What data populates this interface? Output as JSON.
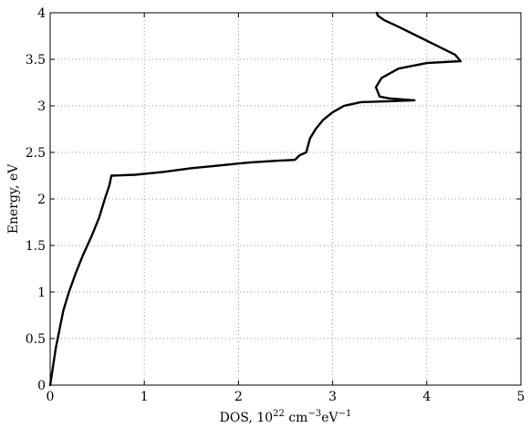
{
  "chart_data": {
    "type": "line",
    "title": "",
    "xlabel": {
      "prefix": "DOS, 10",
      "exp1": "22",
      "mid": " cm",
      "exp2": "−3",
      "suffix": "eV",
      "exp3": "−1"
    },
    "ylabel": "Energy, eV",
    "xlim": [
      0,
      5
    ],
    "ylim": [
      0,
      4
    ],
    "xticks": [
      0,
      1,
      2,
      3,
      4,
      5
    ],
    "xtick_labels": [
      "0",
      "1",
      "2",
      "3",
      "4",
      "5"
    ],
    "yticks": [
      0,
      0.5,
      1,
      1.5,
      2,
      2.5,
      3,
      3.5,
      4
    ],
    "ytick_labels": [
      "0",
      "0.5",
      "1",
      "1.5",
      "2",
      "2.5",
      "3",
      "3.5",
      "4"
    ],
    "grid": true,
    "grid_style": "dotted",
    "series_color": "#000000",
    "series": [
      {
        "x": [
          0.0,
          0.03,
          0.06,
          0.1,
          0.14,
          0.2,
          0.27,
          0.35,
          0.44,
          0.52,
          0.58,
          0.63,
          0.65,
          0.9,
          1.2,
          1.5,
          1.8,
          2.1,
          2.4,
          2.6,
          2.62,
          2.65,
          2.72,
          2.76,
          2.82,
          2.9,
          3.0,
          3.12,
          3.3,
          3.6,
          3.87,
          3.6,
          3.5,
          3.46,
          3.52,
          3.7,
          4.0,
          4.36,
          4.3,
          4.1,
          3.9,
          3.7,
          3.55,
          3.48,
          3.47
        ],
        "y": [
          0.0,
          0.2,
          0.4,
          0.6,
          0.8,
          1.0,
          1.2,
          1.4,
          1.6,
          1.8,
          2.0,
          2.15,
          2.25,
          2.26,
          2.29,
          2.33,
          2.36,
          2.39,
          2.41,
          2.42,
          2.44,
          2.47,
          2.5,
          2.65,
          2.75,
          2.85,
          2.93,
          3.0,
          3.04,
          3.05,
          3.06,
          3.08,
          3.1,
          3.2,
          3.3,
          3.4,
          3.46,
          3.48,
          3.55,
          3.65,
          3.75,
          3.85,
          3.92,
          3.97,
          4.0
        ]
      }
    ]
  }
}
